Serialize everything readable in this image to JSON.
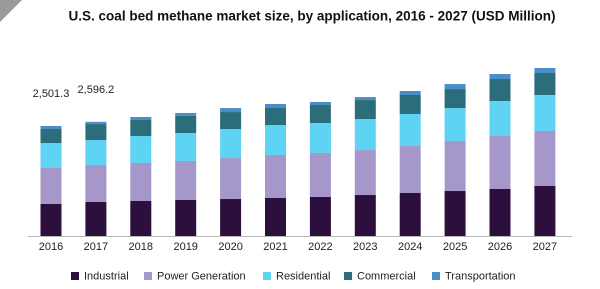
{
  "chart_data": {
    "type": "stacked-bar",
    "title": "U.S. coal bed methane market size, by application, 2016 - 2027 (USD Million)",
    "categories": [
      "2016",
      "2017",
      "2018",
      "2019",
      "2020",
      "2021",
      "2022",
      "2023",
      "2024",
      "2025",
      "2026",
      "2027"
    ],
    "series": [
      {
        "name": "Industrial",
        "color": "#2d0f3e",
        "values": [
          728,
          773,
          796,
          819,
          841,
          864,
          887,
          932,
          978,
          1023,
          1069,
          1137
        ]
      },
      {
        "name": "Power Generation",
        "color": "#a597c9",
        "values": [
          819,
          841,
          864,
          887,
          932,
          978,
          1001,
          1023,
          1069,
          1137,
          1205,
          1251
        ]
      },
      {
        "name": "Residential",
        "color": "#5fd3f3",
        "values": [
          568,
          568,
          614,
          637,
          659,
          682,
          682,
          705,
          728,
          750,
          796,
          819
        ]
      },
      {
        "name": "Commercial",
        "color": "#2b6d7a",
        "values": [
          318,
          364,
          364,
          387,
          387,
          387,
          409,
          432,
          432,
          432,
          500,
          500
        ]
      },
      {
        "name": "Transportation",
        "color": "#4a8ec8",
        "values": [
          68.3,
          50.2,
          68,
          68,
          91,
          91,
          68,
          68,
          91,
          114,
          114,
          114
        ]
      }
    ],
    "annotations": [
      {
        "x": "2016",
        "text": "2,501.3"
      },
      {
        "x": "2017",
        "text": "2,596.2"
      }
    ]
  }
}
